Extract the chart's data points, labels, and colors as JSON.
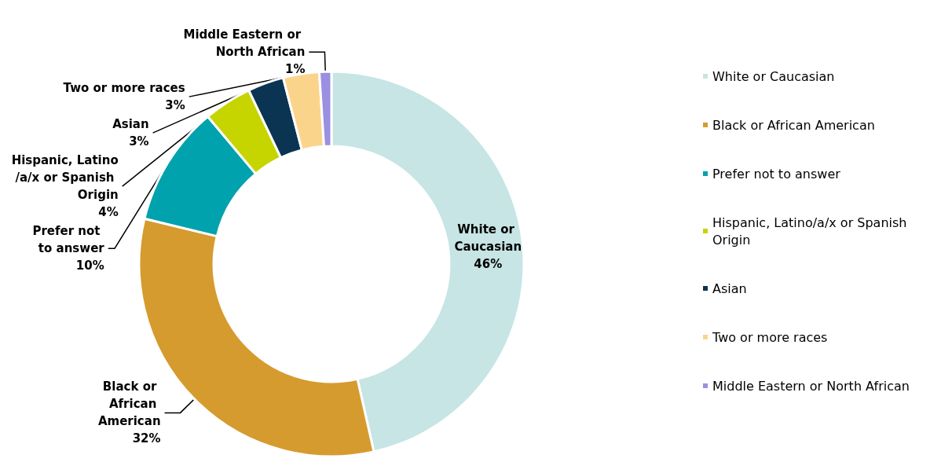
{
  "chart_data": {
    "type": "donut",
    "categories": [
      "White or Caucasian",
      "Black or African American",
      "Prefer not to answer",
      "Hispanic, Latino/a/x or Spanish Origin",
      "Asian",
      "Two or more races",
      "Middle Eastern or North African"
    ],
    "values": [
      46,
      32,
      10,
      4,
      3,
      3,
      1
    ],
    "colors": [
      "#c6e5e4",
      "#d69b2e",
      "#00a2ad",
      "#c6d400",
      "#0b3453",
      "#fbd48c",
      "#9a8fe0"
    ],
    "value_labels": [
      "46%",
      "32%",
      "10%",
      "4%",
      "3%",
      "3%",
      "1%"
    ],
    "legend": "right"
  }
}
